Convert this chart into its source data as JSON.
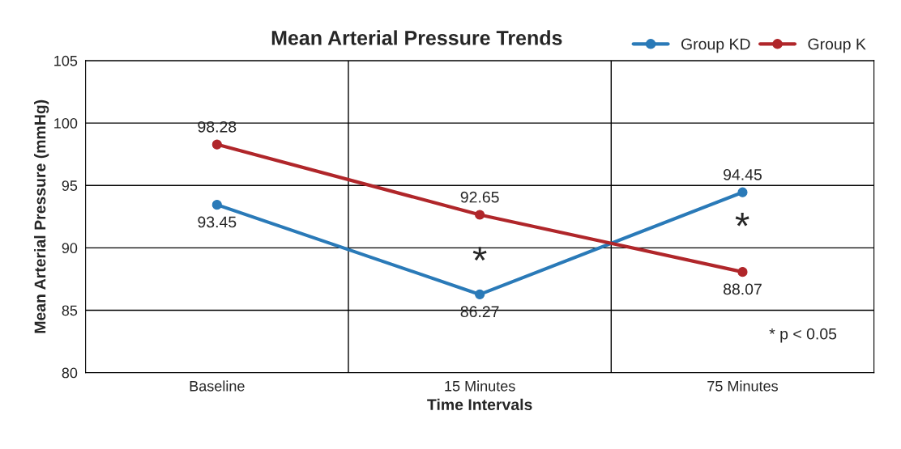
{
  "chart_data": {
    "type": "line",
    "title": "Mean Arterial Pressure Trends",
    "xlabel": "Time Intervals",
    "ylabel": "Mean Arterial Pressure (mmHg)",
    "categories": [
      "Baseline",
      "15 Minutes",
      "75 Minutes"
    ],
    "series": [
      {
        "name": "Group KD",
        "color": "#2a7ab8",
        "values": [
          93.45,
          86.27,
          94.45
        ]
      },
      {
        "name": "Group K",
        "color": "#b0262a",
        "values": [
          98.28,
          92.65,
          88.07
        ]
      }
    ],
    "ylim": [
      80,
      105
    ],
    "yticks": [
      80,
      85,
      90,
      95,
      100,
      105
    ],
    "grid": true,
    "legend": "top right",
    "marker": "circle",
    "line_style": "solid",
    "data_labels": true,
    "annotations": [
      "*",
      "*",
      "* p < 0.05"
    ]
  }
}
